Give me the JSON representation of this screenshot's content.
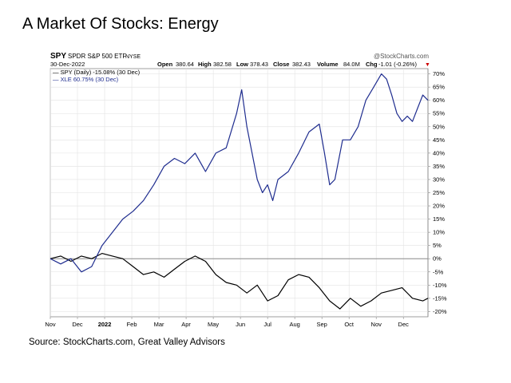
{
  "slide": {
    "title": "A Market Of Stocks: Energy",
    "source": "Source: StockCharts.com, Great Valley Advisors"
  },
  "chart_header": {
    "symbol": "SPY",
    "name": "SPDR S&P 500 ETF",
    "exchange": "NYSE",
    "date": "30-Dec-2022",
    "watermark": "@StockCharts.com",
    "open_label": "Open",
    "open": "380.64",
    "high_label": "High",
    "high": "382.58",
    "low_label": "Low",
    "low": "378.43",
    "close_label": "Close",
    "close": "382.43",
    "volume_label": "Volume",
    "volume": "84.0M",
    "chg_label": "Chg",
    "chg": "-1.01 (-0.26%)",
    "chg_arrow": "▼"
  },
  "legend": [
    {
      "text": "— SPY (Daily) -15.08% (30 Dec)",
      "color": "#000000"
    },
    {
      "text": "— XLE 60.75% (30 Dec)",
      "color": "#1f2d8f"
    }
  ],
  "chart_data": {
    "type": "line",
    "title": "",
    "xlabel": "",
    "ylabel": "",
    "ylim": [
      -22,
      72
    ],
    "grid": true,
    "legend_position": "top-left",
    "x_ticks": [
      "Nov",
      "Dec",
      "2022",
      "Feb",
      "Mar",
      "Apr",
      "May",
      "Jun",
      "Jul",
      "Aug",
      "Sep",
      "Oct",
      "Nov",
      "Dec"
    ],
    "x_tick_index": [
      0,
      21,
      42,
      63,
      84,
      105,
      126,
      147,
      168,
      189,
      210,
      231,
      252,
      273
    ],
    "x_range": [
      0,
      292
    ],
    "y_ticks": [
      70,
      65,
      60,
      55,
      50,
      45,
      40,
      35,
      30,
      25,
      20,
      15,
      10,
      5,
      0,
      -5,
      -10,
      -15,
      -20
    ],
    "series": [
      {
        "name": "SPY (Daily) -15.08% (30 Dec)",
        "color": "#000000",
        "x": [
          0,
          8,
          16,
          24,
          32,
          40,
          48,
          56,
          64,
          72,
          80,
          88,
          96,
          104,
          112,
          120,
          128,
          136,
          144,
          152,
          160,
          168,
          176,
          184,
          192,
          200,
          208,
          216,
          224,
          232,
          240,
          248,
          256,
          264,
          272,
          280,
          288,
          292
        ],
        "values": [
          0,
          1,
          -1,
          1,
          0,
          2,
          1,
          0,
          -3,
          -6,
          -5,
          -7,
          -4,
          -1,
          1,
          -1,
          -6,
          -9,
          -10,
          -13,
          -10,
          -16,
          -14,
          -8,
          -6,
          -7,
          -11,
          -16,
          -19,
          -15,
          -18,
          -16,
          -13,
          -12,
          -11,
          -15,
          -16,
          -15
        ]
      },
      {
        "name": "XLE 60.75% (30 Dec)",
        "color": "#1f2d8f",
        "x": [
          0,
          8,
          16,
          24,
          32,
          40,
          48,
          56,
          64,
          72,
          80,
          88,
          96,
          104,
          112,
          120,
          128,
          136,
          144,
          148,
          152,
          156,
          160,
          164,
          168,
          172,
          176,
          184,
          192,
          200,
          208,
          212,
          216,
          220,
          226,
          232,
          238,
          244,
          250,
          256,
          260,
          264,
          268,
          272,
          276,
          280,
          284,
          288,
          292
        ],
        "values": [
          0,
          -2,
          0,
          -5,
          -3,
          5,
          10,
          15,
          18,
          22,
          28,
          35,
          38,
          36,
          40,
          33,
          40,
          42,
          55,
          64,
          50,
          40,
          30,
          25,
          28,
          22,
          30,
          33,
          40,
          48,
          51,
          40,
          28,
          30,
          45,
          45,
          50,
          60,
          65,
          70,
          68,
          62,
          55,
          52,
          54,
          52,
          57,
          62,
          60
        ]
      }
    ]
  }
}
